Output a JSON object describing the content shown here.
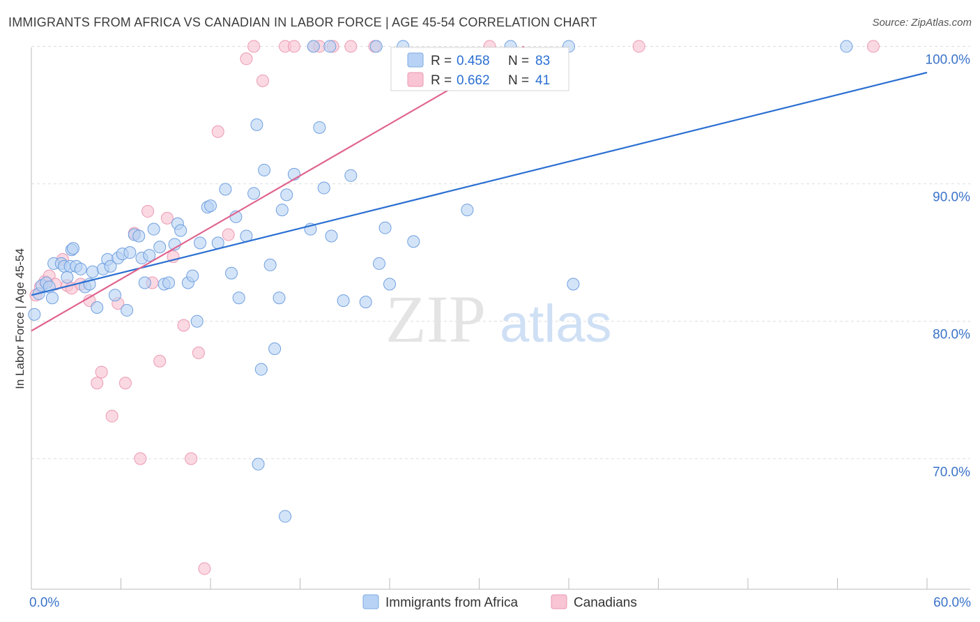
{
  "title": "IMMIGRANTS FROM AFRICA VS CANADIAN IN LABOR FORCE | AGE 45-54 CORRELATION CHART",
  "source": "Source: ZipAtlas.com",
  "watermark": {
    "zip": "ZIP",
    "atlas": "atlas"
  },
  "colors": {
    "blue": "#2a6fd1",
    "blue_fill": "#b7d2f4",
    "pink": "#e0648f",
    "pink_fill": "#f9c4d3",
    "tick": "#3a73c9",
    "grid": "#dddddd"
  },
  "chart_data": {
    "type": "scatter",
    "title": "IMMIGRANTS FROM AFRICA VS CANADIAN IN LABOR FORCE | AGE 45-54 CORRELATION CHART",
    "xlabel": "",
    "ylabel": "In Labor Force | Age 45-54",
    "xlim": [
      0,
      60
    ],
    "ylim": [
      60.5,
      101.5
    ],
    "x_tick_labels": [
      "0.0%",
      "60.0%"
    ],
    "y_ticks": [
      70,
      80,
      90,
      100
    ],
    "y_tick_labels": [
      "70.0%",
      "80.0%",
      "90.0%",
      "100.0%"
    ],
    "grid": true,
    "legend_position": "top-center",
    "stats": [
      {
        "r_label": "R =",
        "r": "0.458",
        "n_label": "N =",
        "n": "83"
      },
      {
        "r_label": "R =",
        "r": "0.662",
        "n_label": "N =",
        "n": "41"
      }
    ],
    "series": [
      {
        "name": "Immigrants from Africa",
        "color": "#2a6fd1",
        "trend": [
          [
            0,
            81.9
          ],
          [
            60,
            98.1
          ]
        ],
        "points": [
          [
            0.2,
            80.5
          ],
          [
            0.5,
            82.0
          ],
          [
            0.7,
            82.6
          ],
          [
            1.0,
            82.8
          ],
          [
            1.2,
            82.5
          ],
          [
            1.4,
            81.7
          ],
          [
            1.5,
            84.2
          ],
          [
            2.0,
            84.2
          ],
          [
            2.2,
            84.0
          ],
          [
            2.4,
            83.2
          ],
          [
            2.6,
            84.0
          ],
          [
            2.7,
            85.2
          ],
          [
            2.8,
            85.3
          ],
          [
            3.0,
            84.0
          ],
          [
            3.3,
            83.8
          ],
          [
            3.6,
            82.5
          ],
          [
            3.9,
            82.7
          ],
          [
            4.1,
            83.6
          ],
          [
            4.4,
            81.0
          ],
          [
            4.8,
            83.8
          ],
          [
            5.1,
            84.5
          ],
          [
            5.3,
            84.0
          ],
          [
            5.6,
            81.9
          ],
          [
            5.8,
            84.6
          ],
          [
            6.1,
            84.9
          ],
          [
            6.4,
            80.8
          ],
          [
            6.6,
            85.0
          ],
          [
            6.9,
            86.3
          ],
          [
            7.2,
            86.2
          ],
          [
            7.4,
            84.6
          ],
          [
            7.6,
            82.8
          ],
          [
            7.9,
            84.8
          ],
          [
            8.2,
            86.7
          ],
          [
            8.6,
            85.4
          ],
          [
            8.9,
            82.7
          ],
          [
            9.2,
            82.8
          ],
          [
            9.6,
            85.6
          ],
          [
            9.8,
            87.1
          ],
          [
            10.0,
            86.6
          ],
          [
            10.5,
            82.8
          ],
          [
            10.8,
            83.3
          ],
          [
            11.1,
            80.0
          ],
          [
            11.3,
            85.7
          ],
          [
            11.8,
            88.3
          ],
          [
            12.0,
            88.4
          ],
          [
            12.5,
            85.7
          ],
          [
            13.0,
            89.6
          ],
          [
            13.4,
            83.5
          ],
          [
            13.7,
            87.6
          ],
          [
            13.9,
            81.7
          ],
          [
            14.4,
            86.2
          ],
          [
            14.9,
            89.3
          ],
          [
            15.1,
            94.3
          ],
          [
            15.4,
            76.5
          ],
          [
            15.6,
            91.0
          ],
          [
            16.0,
            84.1
          ],
          [
            16.3,
            78.0
          ],
          [
            16.6,
            81.7
          ],
          [
            16.8,
            88.1
          ],
          [
            17.1,
            89.2
          ],
          [
            17.6,
            90.7
          ],
          [
            18.7,
            86.7
          ],
          [
            19.3,
            94.1
          ],
          [
            19.6,
            89.7
          ],
          [
            20.1,
            86.2
          ],
          [
            20.9,
            81.5
          ],
          [
            21.4,
            90.6
          ],
          [
            22.4,
            81.4
          ],
          [
            23.3,
            84.2
          ],
          [
            23.7,
            86.8
          ],
          [
            24.0,
            82.7
          ],
          [
            25.6,
            85.8
          ],
          [
            29.2,
            88.1
          ],
          [
            36.3,
            82.7
          ],
          [
            15.2,
            69.6
          ],
          [
            17.0,
            65.8
          ],
          [
            20.0,
            100.0
          ],
          [
            18.9,
            100.0
          ],
          [
            23.1,
            100.0
          ],
          [
            24.9,
            100.0
          ],
          [
            32.1,
            100.0
          ],
          [
            36.0,
            100.0
          ],
          [
            54.6,
            100.0
          ]
        ]
      },
      {
        "name": "Canadians",
        "color": "#e0648f",
        "trend": [
          [
            0,
            79.3
          ],
          [
            33.0,
            100.0
          ]
        ],
        "points": [
          [
            0.3,
            81.9
          ],
          [
            0.6,
            82.5
          ],
          [
            0.9,
            82.9
          ],
          [
            1.2,
            83.3
          ],
          [
            1.6,
            82.7
          ],
          [
            2.1,
            84.5
          ],
          [
            2.4,
            82.6
          ],
          [
            2.7,
            82.4
          ],
          [
            3.3,
            82.7
          ],
          [
            3.9,
            81.5
          ],
          [
            4.4,
            75.5
          ],
          [
            4.7,
            76.3
          ],
          [
            5.4,
            73.1
          ],
          [
            5.8,
            81.3
          ],
          [
            6.3,
            75.5
          ],
          [
            6.9,
            86.4
          ],
          [
            7.3,
            70.0
          ],
          [
            7.8,
            88.0
          ],
          [
            8.1,
            82.8
          ],
          [
            8.6,
            77.1
          ],
          [
            9.1,
            87.5
          ],
          [
            9.5,
            84.7
          ],
          [
            10.2,
            79.7
          ],
          [
            10.7,
            70.0
          ],
          [
            11.2,
            77.7
          ],
          [
            11.6,
            62.0
          ],
          [
            12.5,
            93.8
          ],
          [
            13.2,
            86.3
          ],
          [
            14.4,
            99.1
          ],
          [
            14.9,
            100.0
          ],
          [
            15.5,
            97.5
          ],
          [
            17.0,
            100.0
          ],
          [
            17.6,
            100.0
          ],
          [
            18.9,
            100.0
          ],
          [
            19.3,
            100.0
          ],
          [
            20.2,
            100.0
          ],
          [
            21.4,
            100.0
          ],
          [
            23.0,
            100.0
          ],
          [
            30.7,
            100.0
          ],
          [
            40.7,
            100.0
          ],
          [
            56.4,
            100.0
          ]
        ]
      }
    ]
  }
}
